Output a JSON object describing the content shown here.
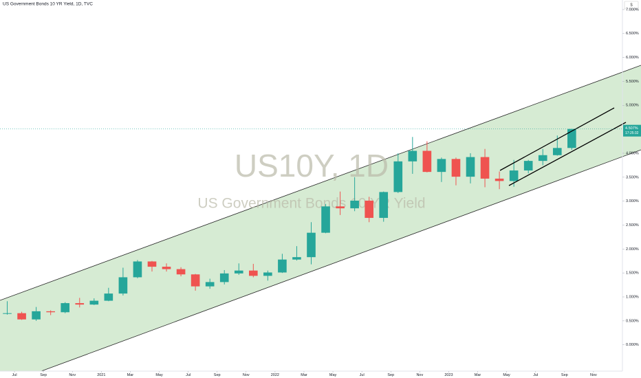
{
  "chart_data": {
    "type": "candlestick",
    "title": "US Government Bonds 10 YR Yield, 1D, TVC",
    "watermark": "US10Y, 1D",
    "watermark_subtitle": "US Government Bonds 10 YR Yield",
    "currency_button": "$",
    "x": [
      "2020-06",
      "2020-07",
      "2020-08",
      "2020-09",
      "2020-10",
      "2020-11",
      "2020-12",
      "2021-01",
      "2021-02",
      "2021-03",
      "2021-04",
      "2021-05",
      "2021-06",
      "2021-07",
      "2021-08",
      "2021-09",
      "2021-10",
      "2021-11",
      "2021-12",
      "2022-01",
      "2022-02",
      "2022-03",
      "2022-04",
      "2022-05",
      "2022-06",
      "2022-07",
      "2022-08",
      "2022-09",
      "2022-10",
      "2022-11",
      "2022-12",
      "2023-01",
      "2023-02",
      "2023-03",
      "2023-04",
      "2023-05",
      "2023-06",
      "2023-07",
      "2023-08",
      "2023-09"
    ],
    "open": [
      0.66,
      0.66,
      0.53,
      0.7,
      0.68,
      0.87,
      0.84,
      0.92,
      1.07,
      1.41,
      1.74,
      1.63,
      1.58,
      1.47,
      1.22,
      1.31,
      1.49,
      1.55,
      1.44,
      1.51,
      1.78,
      1.83,
      2.34,
      2.89,
      2.85,
      3.01,
      2.65,
      3.19,
      3.83,
      4.05,
      3.61,
      3.88,
      3.51,
      3.92,
      3.47,
      3.42,
      3.64,
      3.84,
      3.96,
      4.11
    ],
    "high": [
      0.91,
      0.69,
      0.79,
      0.72,
      0.89,
      0.98,
      0.97,
      1.19,
      1.61,
      1.77,
      1.75,
      1.7,
      1.62,
      1.48,
      1.38,
      1.56,
      1.7,
      1.69,
      1.55,
      1.9,
      2.06,
      2.56,
      2.94,
      3.2,
      3.5,
      3.09,
      3.2,
      4.0,
      4.34,
      4.25,
      3.91,
      3.91,
      4.0,
      4.09,
      3.62,
      3.86,
      3.86,
      4.09,
      4.37,
      4.51
    ],
    "low": [
      0.63,
      0.52,
      0.5,
      0.62,
      0.66,
      0.78,
      0.83,
      0.91,
      1.03,
      1.39,
      1.53,
      1.53,
      1.43,
      1.13,
      1.17,
      1.26,
      1.46,
      1.41,
      1.34,
      1.5,
      1.76,
      1.68,
      2.33,
      2.71,
      2.79,
      2.56,
      2.57,
      3.17,
      3.57,
      3.6,
      3.4,
      3.33,
      3.37,
      3.29,
      3.25,
      3.3,
      3.58,
      3.75,
      3.95,
      4.07
    ],
    "close": [
      0.66,
      0.53,
      0.7,
      0.68,
      0.87,
      0.84,
      0.92,
      1.07,
      1.41,
      1.74,
      1.63,
      1.58,
      1.47,
      1.22,
      1.31,
      1.49,
      1.55,
      1.44,
      1.51,
      1.78,
      1.83,
      2.34,
      2.89,
      2.85,
      3.01,
      2.65,
      3.19,
      3.83,
      4.05,
      3.61,
      3.88,
      3.51,
      3.92,
      3.47,
      3.42,
      3.64,
      3.84,
      3.96,
      4.11,
      4.507
    ],
    "up_color": "#26a69a",
    "down_color": "#ef5350",
    "last_price": {
      "value": 4.507,
      "label": "4.507%"
    },
    "countdown": "17:25:32",
    "xlim": [
      "2020-06",
      "2023-12"
    ],
    "xticks": [
      {
        "value": "2020-07",
        "label": "Jul"
      },
      {
        "value": "2020-09",
        "label": "Sep"
      },
      {
        "value": "2020-11",
        "label": "Nov"
      },
      {
        "value": "2021-01",
        "label": "2021"
      },
      {
        "value": "2021-03",
        "label": "Mar"
      },
      {
        "value": "2021-05",
        "label": "May"
      },
      {
        "value": "2021-07",
        "label": "Jul"
      },
      {
        "value": "2021-09",
        "label": "Sep"
      },
      {
        "value": "2021-11",
        "label": "Nov"
      },
      {
        "value": "2022-01",
        "label": "2022"
      },
      {
        "value": "2022-03",
        "label": "Mar"
      },
      {
        "value": "2022-05",
        "label": "May"
      },
      {
        "value": "2022-07",
        "label": "Jul"
      },
      {
        "value": "2022-09",
        "label": "Sep"
      },
      {
        "value": "2022-11",
        "label": "Nov"
      },
      {
        "value": "2023-01",
        "label": "2023"
      },
      {
        "value": "2023-03",
        "label": "Mar"
      },
      {
        "value": "2023-05",
        "label": "May"
      },
      {
        "value": "2023-07",
        "label": "Jul"
      },
      {
        "value": "2023-09",
        "label": "Sep"
      },
      {
        "value": "2023-11",
        "label": "Nov"
      }
    ],
    "ylim": [
      -0.55,
      7.2
    ],
    "yticks": [
      {
        "value": 0,
        "label": "0.000%"
      },
      {
        "value": 0.5,
        "label": "0.500%"
      },
      {
        "value": 1,
        "label": "1.000%"
      },
      {
        "value": 1.5,
        "label": "1.500%"
      },
      {
        "value": 2,
        "label": "2.000%"
      },
      {
        "value": 2.5,
        "label": "2.500%"
      },
      {
        "value": 3,
        "label": "3.000%"
      },
      {
        "value": 3.5,
        "label": "3.500%"
      },
      {
        "value": 4,
        "label": "4.000%"
      },
      {
        "value": 5,
        "label": "5.000%"
      },
      {
        "value": 5.5,
        "label": "5.500%"
      },
      {
        "value": 6,
        "label": "6.000%"
      },
      {
        "value": 6.5,
        "label": "6.500%"
      },
      {
        "value": 7,
        "label": "7.000%"
      }
    ]
  }
}
